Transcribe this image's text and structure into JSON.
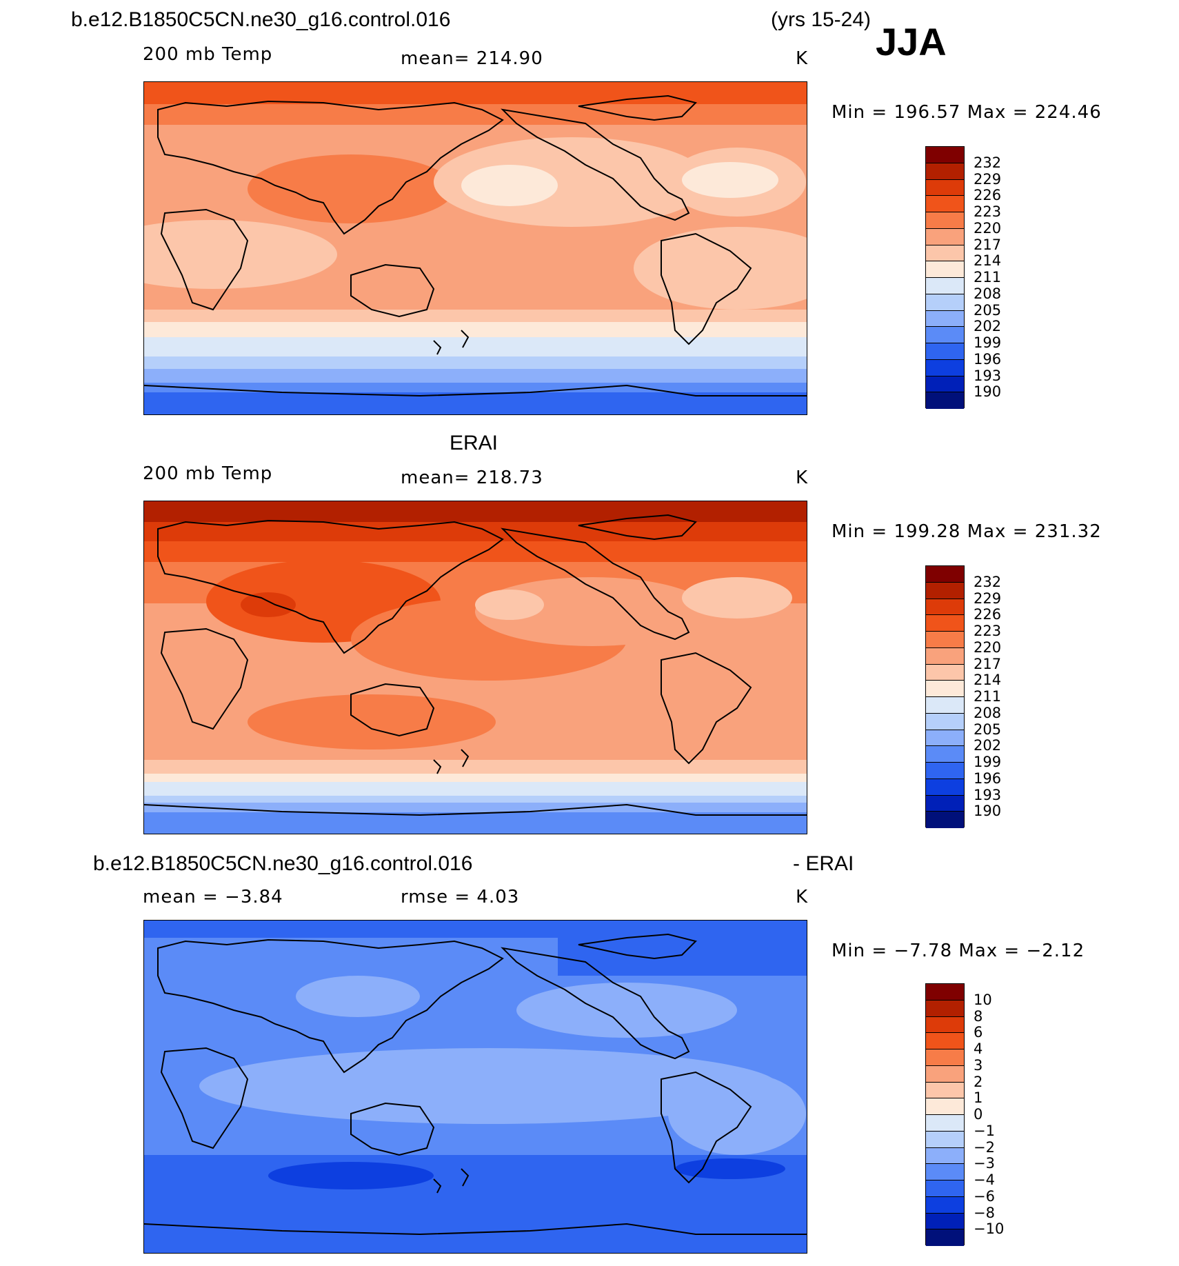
{
  "header": {
    "case_name": "b.e12.B1850C5CN.ne30_g16.control.016",
    "years": "(yrs 15-24)",
    "season": "JJA"
  },
  "panel1": {
    "variable": "200 mb Temp",
    "mean": "mean=  214.90",
    "units": "K",
    "minmax": "Min  =  196.57  Max  =  224.46"
  },
  "panel2": {
    "title": "ERAI",
    "variable": "200 mb Temp",
    "mean": "mean=  218.73",
    "units": "K",
    "minmax": "Min  =  199.28  Max  =  231.32"
  },
  "panel3": {
    "title_left": "b.e12.B1850C5CN.ne30_g16.control.016",
    "title_right": "- ERAI",
    "mean": "mean  =    −3.84",
    "rmse": "rmse  =     4.03",
    "units": "K",
    "minmax": "Min  =    −7.78  Max  =    −2.12"
  },
  "colorbar_temp": {
    "ticks": [
      "232",
      "229",
      "226",
      "223",
      "220",
      "217",
      "214",
      "211",
      "208",
      "205",
      "202",
      "199",
      "196",
      "193",
      "190"
    ],
    "colors": [
      "#7f0000",
      "#b22000",
      "#dd3b09",
      "#f0541a",
      "#f77c48",
      "#f9a27c",
      "#fcc6aa",
      "#fde9d9",
      "#dbe8f8",
      "#b5cffa",
      "#8caffa",
      "#5b8bf7",
      "#2f65f0",
      "#0d3fe0",
      "#0020b8",
      "#00107a"
    ]
  },
  "colorbar_diff": {
    "ticks": [
      "10",
      "8",
      "6",
      "4",
      "3",
      "2",
      "1",
      "0",
      "−1",
      "−2",
      "−3",
      "−4",
      "−6",
      "−8",
      "−10"
    ],
    "colors": [
      "#7f0000",
      "#b22000",
      "#dd3b09",
      "#f0541a",
      "#f77c48",
      "#f9a27c",
      "#fcc6aa",
      "#fde9d9",
      "#dbe8f8",
      "#b5cffa",
      "#8caffa",
      "#5b8bf7",
      "#2f65f0",
      "#0d3fe0",
      "#0020b8",
      "#00107a"
    ]
  }
}
